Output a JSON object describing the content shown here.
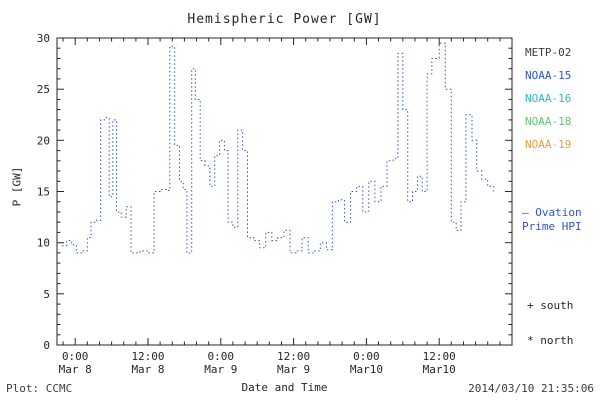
{
  "colors": {
    "axis": "#262626",
    "trace_blue": "#2f55c4",
    "footer_gray": "#3c3c3c"
  },
  "legend": {
    "satellites": [
      {
        "label": "METP-02",
        "color": "#3c3c3c"
      },
      {
        "label": "NOAA-15",
        "color": "#2f55c4"
      },
      {
        "label": "NOAA-16",
        "color": "#2fb8c9"
      },
      {
        "label": "NOAA-18",
        "color": "#66c26e"
      },
      {
        "label": "NOAA-19",
        "color": "#f09a3c"
      }
    ],
    "model_line1": "— Ovation",
    "model_line2": "Prime HPI",
    "model_color": "#2f55c4",
    "south_marker": "+ south",
    "north_marker": "* north"
  },
  "footer": {
    "left": "Plot: CCMC",
    "right": "2014/03/10 21:35:06"
  },
  "chart_data": {
    "type": "line",
    "step": true,
    "dotted": true,
    "title": "Hemispheric Power [GW]",
    "xlabel": "Date and Time",
    "ylabel": "P [GW]",
    "ylim": [
      0,
      30
    ],
    "yticks": [
      0,
      5,
      10,
      15,
      20,
      25,
      30
    ],
    "xlim_hours": [
      -3,
      72
    ],
    "x_unit": "hours from Mar 8 0:00",
    "xticks": [
      {
        "h": 0,
        "time": "0:00",
        "date": "Mar 8"
      },
      {
        "h": 12,
        "time": "12:00",
        "date": "Mar 8"
      },
      {
        "h": 24,
        "time": "0:00",
        "date": "Mar 9"
      },
      {
        "h": 36,
        "time": "12:00",
        "date": "Mar 9"
      },
      {
        "h": 48,
        "time": "0:00",
        "date": "Mar10"
      },
      {
        "h": 60,
        "time": "12:00",
        "date": "Mar10"
      }
    ],
    "series": [
      {
        "name": "Ovation Prime HPI",
        "satellite": "NOAA-15",
        "color": "#2f55c4",
        "x": [
          -3,
          -2.2,
          -1.4,
          -0.6,
          0.2,
          1,
          2,
          2.6,
          3.4,
          4.2,
          5,
          5.6,
          6.2,
          6.8,
          7.6,
          8.4,
          9.2,
          10.2,
          11.2,
          12.2,
          13,
          14,
          15,
          15.6,
          16.4,
          17.2,
          17.8,
          18.4,
          19.2,
          19.8,
          20.6,
          21.4,
          22.2,
          23,
          23.8,
          24.6,
          25.2,
          26,
          26.8,
          27.6,
          28.4,
          29.4,
          30.4,
          31.4,
          32.4,
          33.4,
          34.4,
          35.4,
          36.4,
          37.4,
          38.4,
          39.4,
          40.4,
          41.4,
          42.4,
          43.4,
          44.4,
          45.4,
          46.4,
          47.4,
          48.4,
          49.4,
          50.4,
          51.4,
          52.4,
          53.2,
          54,
          54.8,
          55.6,
          56.4,
          57.2,
          58,
          58.8,
          60,
          61,
          62,
          62.8,
          63.6,
          64.4,
          65.4,
          66.2,
          67,
          68,
          69
        ],
        "y": [
          10,
          9.7,
          10.2,
          9.8,
          9,
          9.2,
          10.5,
          12,
          12.2,
          22,
          22.2,
          14.5,
          22,
          13,
          12.5,
          13.5,
          9,
          9.1,
          9.2,
          9,
          15,
          15.2,
          15.1,
          29.2,
          19.5,
          16,
          15.2,
          9,
          27,
          24,
          18,
          17.5,
          15.5,
          18.5,
          20,
          19,
          12,
          11.5,
          21,
          19,
          10.5,
          10.2,
          9.5,
          11,
          10.2,
          10.5,
          11.2,
          9,
          9.2,
          10.5,
          9,
          9.2,
          10,
          9.3,
          14,
          14.2,
          12,
          15,
          15.5,
          13,
          16,
          14,
          15.5,
          18,
          18.2,
          28.5,
          23,
          14,
          15,
          16.5,
          15,
          26.5,
          28,
          29.5,
          25,
          12,
          11.2,
          14,
          22.5,
          20,
          17,
          16.2,
          15.5,
          15
        ]
      }
    ]
  }
}
